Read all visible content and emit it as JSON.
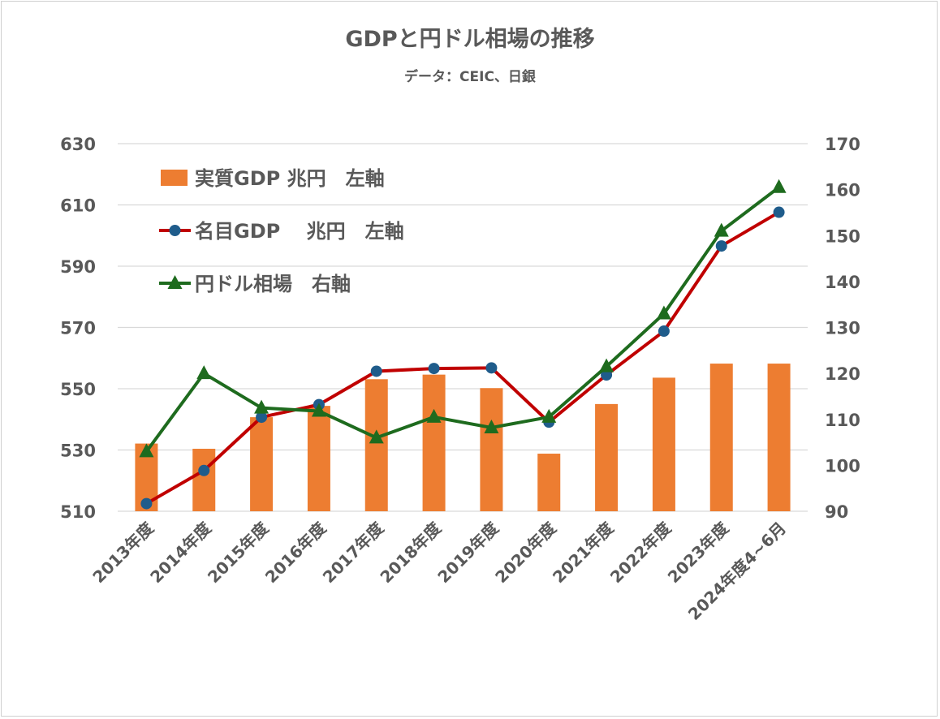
{
  "chart_data": {
    "type": "bar",
    "title": "GDPと円ドル相場の推移",
    "subtitle": "データ：CEIC、日銀",
    "categories": [
      "2013年度",
      "2014年度",
      "2015年度",
      "2016年度",
      "2017年度",
      "2018年度",
      "2019年度",
      "2020年度",
      "2021年度",
      "2022年度",
      "2023年度",
      "2024年度4~6月"
    ],
    "y_left": {
      "min": 510,
      "max": 630,
      "ticks": [
        510,
        530,
        550,
        570,
        590,
        610,
        630
      ]
    },
    "y_right": {
      "min": 90,
      "max": 170,
      "ticks": [
        90,
        100,
        110,
        120,
        130,
        140,
        150,
        160,
        170
      ]
    },
    "grid": true,
    "legend_position": "top-left",
    "series": [
      {
        "name": "実質GDP 兆円　左軸",
        "type": "bar",
        "axis": "left",
        "color": "#ED7D31",
        "values": [
          532.1,
          530.4,
          540.7,
          544.4,
          553.1,
          554.6,
          550.2,
          528.8,
          545.0,
          553.6,
          558.2,
          558.2
        ]
      },
      {
        "name": "名目GDP　 兆円　左軸",
        "type": "line",
        "axis": "left",
        "color": "#C00000",
        "marker": "circle",
        "marker_color": "#1F5C8B",
        "values": [
          512.5,
          523.3,
          540.7,
          544.8,
          555.7,
          556.6,
          556.8,
          539.1,
          554.5,
          568.8,
          596.6,
          607.6
        ]
      },
      {
        "name": "円ドル相場　右軸",
        "type": "line",
        "axis": "right",
        "color": "#1E6B1E",
        "marker": "triangle",
        "marker_color": "#1E6B1E",
        "values": [
          103.0,
          120.0,
          112.5,
          111.8,
          106.0,
          110.5,
          108.2,
          110.5,
          121.5,
          133.0,
          151.0,
          160.5
        ]
      }
    ]
  }
}
